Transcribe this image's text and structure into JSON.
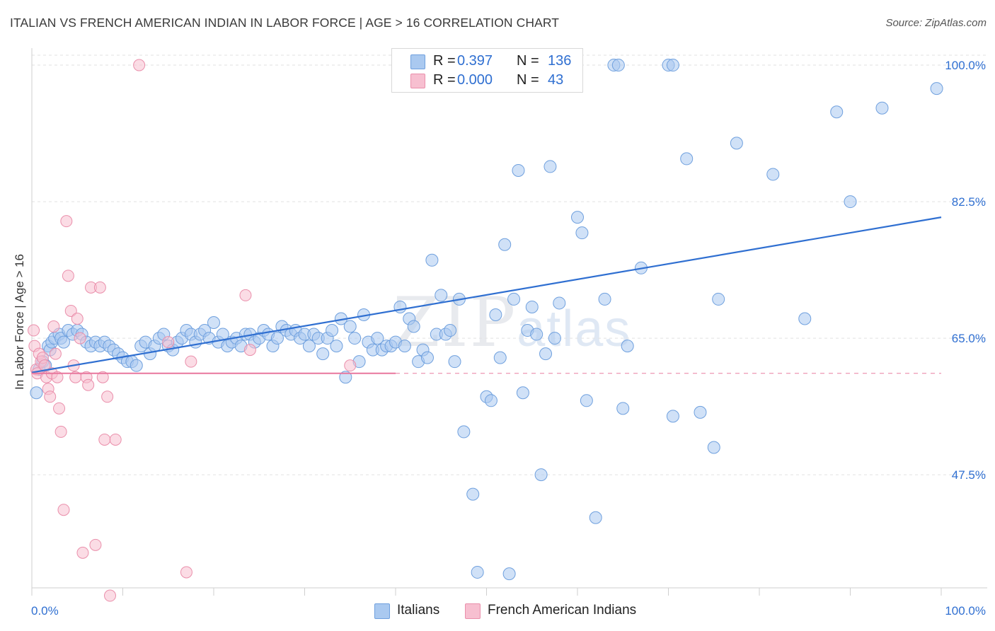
{
  "title": "ITALIAN VS FRENCH AMERICAN INDIAN IN LABOR FORCE | AGE > 16 CORRELATION CHART",
  "source": "Source: ZipAtlas.com",
  "watermark": {
    "zip": "ZIP",
    "atlas": "atlas"
  },
  "colors": {
    "italians_fill": "#aac9f0",
    "italians_stroke": "#6fa0de",
    "italians_line": "#2f6fd1",
    "french_fill": "#f7bfd0",
    "french_stroke": "#ea8fab",
    "french_line": "#e8779d",
    "grid": "#e2e2e2",
    "accent_text": "#2f6fd1"
  },
  "legend": {
    "items": [
      {
        "r_label": "R =",
        "r_value": "0.397",
        "n_label": "N =",
        "n_value": "136"
      },
      {
        "r_label": "R =",
        "r_value": "0.000",
        "n_label": "N =",
        "n_value": "43"
      }
    ]
  },
  "bottom_legend": {
    "italians": "Italians",
    "french": "French American Indians"
  },
  "chart_data": {
    "type": "scatter",
    "title": "ITALIAN VS FRENCH AMERICAN INDIAN IN LABOR FORCE | AGE > 16 CORRELATION CHART",
    "xlabel": "",
    "ylabel": "In Labor Force | Age > 16",
    "xlim": [
      0,
      100
    ],
    "ylim": [
      33,
      102
    ],
    "x_tick_labels": [
      "0.0%",
      "100.0%"
    ],
    "y_ticks": [
      47.5,
      65.0,
      82.5,
      100.0
    ],
    "y_tick_labels": [
      "47.5%",
      "65.0%",
      "82.5%",
      "100.0%"
    ],
    "grid": true,
    "legend_position": "top-center",
    "series": [
      {
        "name": "Italians",
        "R": 0.397,
        "N": 136,
        "trend": {
          "x": [
            0,
            100
          ],
          "y": [
            60.6,
            80.5
          ]
        },
        "points": [
          [
            0.5,
            58.0
          ],
          [
            0.8,
            61.0
          ],
          [
            1.2,
            62.0
          ],
          [
            1.5,
            61.5
          ],
          [
            1.8,
            64.0
          ],
          [
            2.0,
            63.5
          ],
          [
            2.2,
            64.5
          ],
          [
            2.5,
            65.0
          ],
          [
            3.0,
            65.5
          ],
          [
            3.2,
            65.0
          ],
          [
            3.5,
            64.5
          ],
          [
            4.0,
            66.0
          ],
          [
            4.5,
            65.5
          ],
          [
            5.0,
            66.0
          ],
          [
            5.5,
            65.5
          ],
          [
            6.0,
            64.5
          ],
          [
            6.5,
            64.0
          ],
          [
            7.0,
            64.5
          ],
          [
            7.5,
            64.0
          ],
          [
            8.0,
            64.5
          ],
          [
            8.5,
            64.0
          ],
          [
            9.0,
            63.5
          ],
          [
            9.5,
            63.0
          ],
          [
            10.0,
            62.5
          ],
          [
            10.5,
            62.0
          ],
          [
            11.0,
            62.0
          ],
          [
            11.5,
            61.5
          ],
          [
            12.0,
            64.0
          ],
          [
            12.5,
            64.5
          ],
          [
            13.0,
            63.0
          ],
          [
            13.5,
            64.0
          ],
          [
            14.0,
            65.0
          ],
          [
            14.5,
            65.5
          ],
          [
            15.0,
            64.0
          ],
          [
            15.5,
            63.5
          ],
          [
            16.0,
            64.5
          ],
          [
            16.5,
            65.0
          ],
          [
            17.0,
            66.0
          ],
          [
            17.5,
            65.5
          ],
          [
            18.0,
            64.5
          ],
          [
            18.5,
            65.5
          ],
          [
            19.0,
            66.0
          ],
          [
            19.5,
            65.0
          ],
          [
            20.0,
            67.0
          ],
          [
            20.5,
            64.5
          ],
          [
            21.0,
            65.5
          ],
          [
            21.5,
            64.0
          ],
          [
            22.0,
            64.5
          ],
          [
            22.5,
            65.0
          ],
          [
            23.0,
            64.0
          ],
          [
            23.5,
            65.5
          ],
          [
            24.0,
            65.5
          ],
          [
            24.5,
            64.5
          ],
          [
            25.0,
            65.0
          ],
          [
            25.5,
            66.0
          ],
          [
            26.0,
            65.5
          ],
          [
            26.5,
            64.0
          ],
          [
            27.0,
            65.0
          ],
          [
            27.5,
            66.5
          ],
          [
            28.0,
            66.0
          ],
          [
            28.5,
            65.5
          ],
          [
            29.0,
            66.0
          ],
          [
            29.5,
            65.0
          ],
          [
            30.0,
            65.5
          ],
          [
            30.5,
            64.0
          ],
          [
            31.0,
            65.5
          ],
          [
            31.5,
            65.0
          ],
          [
            32.0,
            63.0
          ],
          [
            32.5,
            65.0
          ],
          [
            33.0,
            66.0
          ],
          [
            33.5,
            64.0
          ],
          [
            34.0,
            67.5
          ],
          [
            34.5,
            60.0
          ],
          [
            35.0,
            66.5
          ],
          [
            35.5,
            65.0
          ],
          [
            36.0,
            62.0
          ],
          [
            36.5,
            68.0
          ],
          [
            37.0,
            64.5
          ],
          [
            37.5,
            63.5
          ],
          [
            38.0,
            65.0
          ],
          [
            38.5,
            63.5
          ],
          [
            39.0,
            64.0
          ],
          [
            39.5,
            64.0
          ],
          [
            40.0,
            64.5
          ],
          [
            40.5,
            69.0
          ],
          [
            41.0,
            64.0
          ],
          [
            41.5,
            67.5
          ],
          [
            42.0,
            66.5
          ],
          [
            42.5,
            62.0
          ],
          [
            43.0,
            63.5
          ],
          [
            43.5,
            62.5
          ],
          [
            44.0,
            75.0
          ],
          [
            44.5,
            65.5
          ],
          [
            45.0,
            70.5
          ],
          [
            45.5,
            65.5
          ],
          [
            46.0,
            66.0
          ],
          [
            46.5,
            62.0
          ],
          [
            47.0,
            70.0
          ],
          [
            47.5,
            53.0
          ],
          [
            48.5,
            45.0
          ],
          [
            49.0,
            35.0
          ],
          [
            50.0,
            57.5
          ],
          [
            50.5,
            57.0
          ],
          [
            51.0,
            68.0
          ],
          [
            51.5,
            62.5
          ],
          [
            52.0,
            77.0
          ],
          [
            52.5,
            34.8
          ],
          [
            53.0,
            70.0
          ],
          [
            53.5,
            86.5
          ],
          [
            54.0,
            58.0
          ],
          [
            54.5,
            66.0
          ],
          [
            55.0,
            69.0
          ],
          [
            55.5,
            65.5
          ],
          [
            56.0,
            47.5
          ],
          [
            56.5,
            63.0
          ],
          [
            57.0,
            87.0
          ],
          [
            57.5,
            65.0
          ],
          [
            58.0,
            69.5
          ],
          [
            58.5,
            100.0
          ],
          [
            59.0,
            100.0
          ],
          [
            60.0,
            80.5
          ],
          [
            60.5,
            78.5
          ],
          [
            61.0,
            57.0
          ],
          [
            62.0,
            42.0
          ],
          [
            63.0,
            70.0
          ],
          [
            64.0,
            100.0
          ],
          [
            64.5,
            100.0
          ],
          [
            65.0,
            56.0
          ],
          [
            65.5,
            64.0
          ],
          [
            67.0,
            74.0
          ],
          [
            70.0,
            100.0
          ],
          [
            70.5,
            100.0
          ],
          [
            70.5,
            55.0
          ],
          [
            72.0,
            88.0
          ],
          [
            73.5,
            55.5
          ],
          [
            75.0,
            51.0
          ],
          [
            75.5,
            70.0
          ],
          [
            77.5,
            90.0
          ],
          [
            81.5,
            86.0
          ],
          [
            85.0,
            67.5
          ],
          [
            88.5,
            94.0
          ],
          [
            90.0,
            82.5
          ],
          [
            93.5,
            94.5
          ],
          [
            99.5,
            97.0
          ]
        ]
      },
      {
        "name": "French American Indians",
        "R": 0.0,
        "N": 43,
        "trend": {
          "x": [
            0,
            100
          ],
          "y": [
            60.5,
            60.5
          ]
        },
        "points": [
          [
            0.2,
            66.0
          ],
          [
            0.3,
            64.0
          ],
          [
            0.5,
            61.0
          ],
          [
            0.6,
            60.5
          ],
          [
            0.8,
            63.0
          ],
          [
            1.0,
            62.0
          ],
          [
            1.2,
            62.5
          ],
          [
            1.4,
            61.5
          ],
          [
            1.6,
            60.0
          ],
          [
            1.8,
            58.5
          ],
          [
            2.0,
            57.5
          ],
          [
            2.2,
            60.5
          ],
          [
            2.4,
            66.5
          ],
          [
            2.6,
            63.0
          ],
          [
            2.8,
            60.0
          ],
          [
            3.0,
            56.0
          ],
          [
            3.2,
            53.0
          ],
          [
            3.5,
            43.0
          ],
          [
            3.8,
            80.0
          ],
          [
            4.0,
            73.0
          ],
          [
            4.3,
            68.5
          ],
          [
            4.6,
            61.5
          ],
          [
            4.8,
            60.0
          ],
          [
            5.0,
            67.5
          ],
          [
            5.3,
            65.0
          ],
          [
            5.6,
            37.5
          ],
          [
            6.0,
            60.0
          ],
          [
            6.2,
            59.0
          ],
          [
            6.5,
            71.5
          ],
          [
            7.0,
            38.5
          ],
          [
            7.5,
            71.5
          ],
          [
            7.8,
            60.0
          ],
          [
            8.0,
            52.0
          ],
          [
            8.3,
            57.5
          ],
          [
            8.6,
            32.0
          ],
          [
            9.2,
            52.0
          ],
          [
            11.8,
            100.0
          ],
          [
            15.0,
            64.5
          ],
          [
            17.0,
            35.0
          ],
          [
            17.5,
            62.0
          ],
          [
            23.5,
            70.5
          ],
          [
            24.0,
            63.5
          ],
          [
            35.0,
            61.5
          ]
        ]
      }
    ]
  }
}
